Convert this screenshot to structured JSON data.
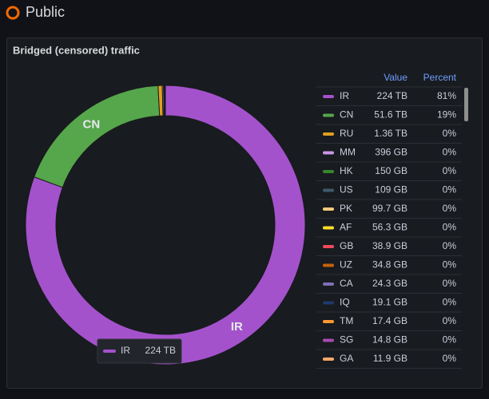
{
  "page_title": "Public",
  "chart_data": {
    "type": "donut",
    "title": "Bridged (censored) traffic",
    "value_header": "Value",
    "percent_header": "Percent",
    "categories": [
      "IR",
      "CN",
      "RU",
      "MM",
      "HK",
      "US",
      "PK",
      "AF",
      "GB",
      "UZ",
      "CA",
      "IQ",
      "TM",
      "SG",
      "GA"
    ],
    "values": [
      224,
      51.6,
      1.36,
      0.396,
      0.15,
      0.109,
      0.0997,
      0.0563,
      0.0389,
      0.0348,
      0.0243,
      0.0191,
      0.0174,
      0.0148,
      0.0119
    ],
    "value_labels": [
      "224 TB",
      "51.6 TB",
      "1.36 TB",
      "396 GB",
      "150 GB",
      "109 GB",
      "99.7 GB",
      "56.3 GB",
      "38.9 GB",
      "34.8 GB",
      "24.3 GB",
      "19.1 GB",
      "17.4 GB",
      "14.8 GB",
      "11.9 GB"
    ],
    "percent_values": [
      81,
      19,
      0,
      0,
      0,
      0,
      0,
      0,
      0,
      0,
      0,
      0,
      0,
      0,
      0
    ],
    "percent_labels": [
      "81%",
      "19%",
      "0%",
      "0%",
      "0%",
      "0%",
      "0%",
      "0%",
      "0%",
      "0%",
      "0%",
      "0%",
      "0%",
      "0%",
      "0%"
    ],
    "colors": [
      "#a352cc",
      "#56a64b",
      "#e0a020",
      "#ca95e5",
      "#37872d",
      "#3e5a6b",
      "#ffcb7d",
      "#fade2a",
      "#f2495c",
      "#c4630d",
      "#806eb7",
      "#1f3a6b",
      "#ff9830",
      "#a54bb0",
      "#ffa86b"
    ]
  }
}
